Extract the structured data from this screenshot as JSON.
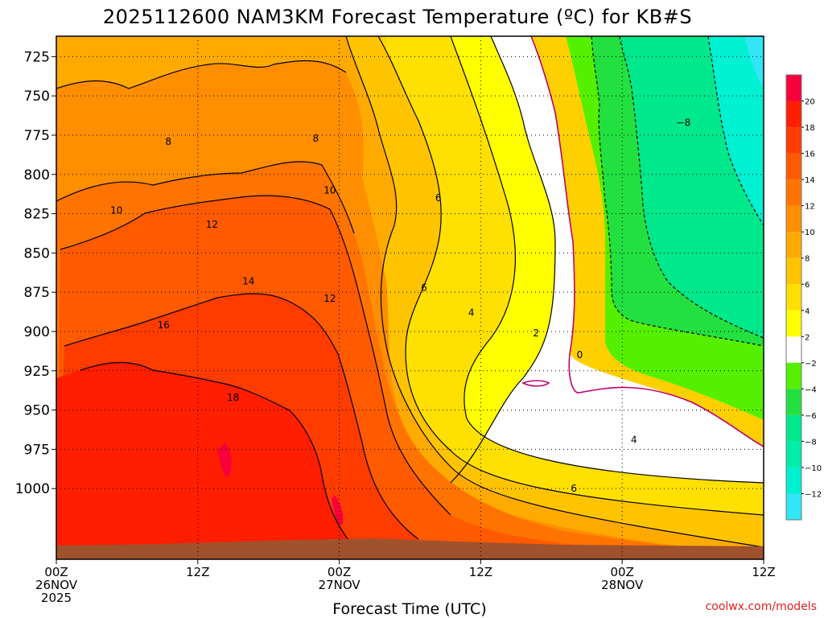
{
  "chart_data": {
    "type": "heatmap",
    "title": "2025112600 NAM3KM Forecast Temperature (ºC) for KB#S",
    "xlabel": "Forecast Time (UTC)",
    "ylabel": "",
    "x_ticks": [
      {
        "hour": 0,
        "l1": "00Z",
        "l2": "26NOV",
        "l3": "2025"
      },
      {
        "hour": 12,
        "l1": "12Z",
        "l2": "",
        "l3": ""
      },
      {
        "hour": 24,
        "l1": "00Z",
        "l2": "27NOV",
        "l3": ""
      },
      {
        "hour": 36,
        "l1": "12Z",
        "l2": "",
        "l3": ""
      },
      {
        "hour": 48,
        "l1": "00Z",
        "l2": "28NOV",
        "l3": ""
      },
      {
        "hour": 60,
        "l1": "12Z",
        "l2": "",
        "l3": ""
      }
    ],
    "xlim_hours": [
      0,
      60
    ],
    "y_ticks": [
      725,
      750,
      775,
      800,
      825,
      850,
      875,
      900,
      925,
      950,
      975,
      1000
    ],
    "ylim": [
      712,
      1045
    ],
    "colorbar": {
      "bands": [
        {
          "lo": -14,
          "hi": -12,
          "color": "#30e6f7"
        },
        {
          "lo": -12,
          "hi": -10,
          "color": "#00f0d2"
        },
        {
          "lo": -10,
          "hi": -8,
          "color": "#00eeaa"
        },
        {
          "lo": -8,
          "hi": -6,
          "color": "#00e88c"
        },
        {
          "lo": -6,
          "hi": -4,
          "color": "#22e040"
        },
        {
          "lo": -4,
          "hi": -2,
          "color": "#55f000"
        },
        {
          "lo": -2,
          "hi": 2,
          "color": "#ffffff"
        },
        {
          "lo": 2,
          "hi": 4,
          "color": "#ffff00"
        },
        {
          "lo": 4,
          "hi": 6,
          "color": "#ffe000"
        },
        {
          "lo": 6,
          "hi": 8,
          "color": "#ffc400"
        },
        {
          "lo": 8,
          "hi": 10,
          "color": "#ffaa00"
        },
        {
          "lo": 10,
          "hi": 12,
          "color": "#ff8e00"
        },
        {
          "lo": 12,
          "hi": 14,
          "color": "#ff7400"
        },
        {
          "lo": 14,
          "hi": 16,
          "color": "#ff5a00"
        },
        {
          "lo": 16,
          "hi": 18,
          "color": "#ff3c00"
        },
        {
          "lo": 18,
          "hi": 20,
          "color": "#ff1e00"
        },
        {
          "lo": 20,
          "hi": 22,
          "color": "#f7003c"
        }
      ],
      "labels": [
        "20",
        "18",
        "16",
        "14",
        "12",
        "10",
        "8",
        "6",
        "4",
        "2",
        "−2",
        "−4",
        "−6",
        "−8",
        "−10",
        "−12"
      ]
    },
    "contour_labels": [
      {
        "text": "8",
        "hour": 9.5,
        "p": 779
      },
      {
        "text": "8",
        "hour": 22,
        "p": 777
      },
      {
        "text": "−8",
        "hour": 53.2,
        "p": 767
      },
      {
        "text": "10",
        "hour": 5.1,
        "p": 823
      },
      {
        "text": "10",
        "hour": 23.2,
        "p": 810
      },
      {
        "text": "12",
        "hour": 13.2,
        "p": 832
      },
      {
        "text": "6",
        "hour": 32.4,
        "p": 815
      },
      {
        "text": "14",
        "hour": 16.3,
        "p": 868
      },
      {
        "text": "12",
        "hour": 23.2,
        "p": 879
      },
      {
        "text": "6",
        "hour": 31.2,
        "p": 872
      },
      {
        "text": "4",
        "hour": 35.2,
        "p": 888
      },
      {
        "text": "16",
        "hour": 9.1,
        "p": 896
      },
      {
        "text": "2",
        "hour": 40.7,
        "p": 901
      },
      {
        "text": "0",
        "hour": 44.4,
        "p": 915
      },
      {
        "text": "18",
        "hour": 15,
        "p": 942
      },
      {
        "text": "4",
        "hour": 49,
        "p": 969
      },
      {
        "text": "6",
        "hour": 43.9,
        "p": 1000
      }
    ],
    "credit": "coolwx.com/models"
  }
}
